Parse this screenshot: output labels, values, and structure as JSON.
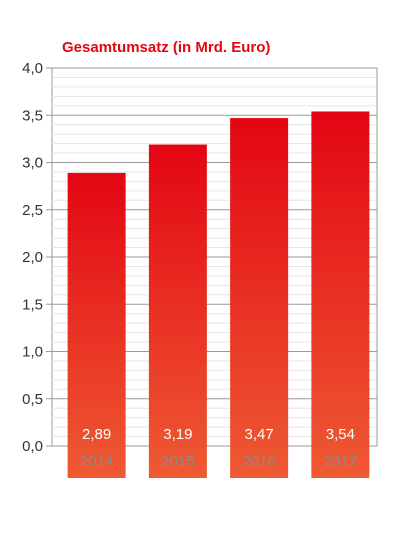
{
  "chart_data": {
    "type": "bar",
    "title": "Gesamtumsatz (in Mrd. Euro)",
    "categories": [
      "2014",
      "2015",
      "2016",
      "2017"
    ],
    "values": [
      2.89,
      3.19,
      3.47,
      3.54
    ],
    "value_labels": [
      "2,89",
      "3,19",
      "3,47",
      "3,54"
    ],
    "y_ticks": [
      "0,0",
      "0,5",
      "1,0",
      "1,5",
      "2,0",
      "2,5",
      "3,0",
      "3,5",
      "4,0"
    ],
    "ylim": [
      0,
      4
    ],
    "grid": true,
    "bar_color_top": "#e30613",
    "bar_color_bottom": "#ee5a33",
    "title_color": "#e30613",
    "category_label_color": "#8a8a8a",
    "value_label_color": "#ffffff"
  }
}
